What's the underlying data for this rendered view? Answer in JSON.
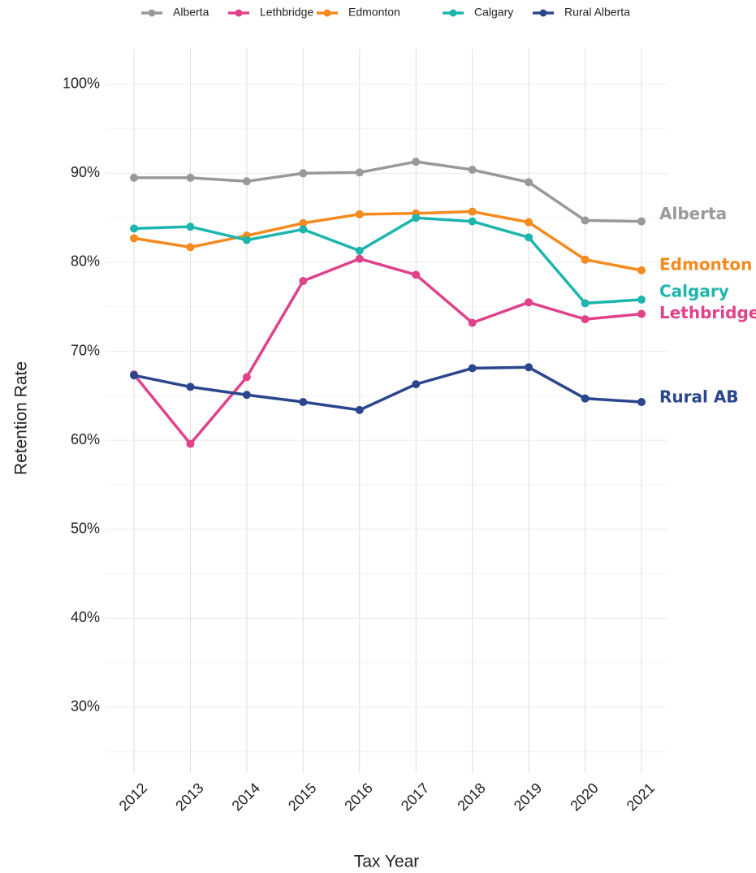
{
  "chart_data": {
    "type": "line",
    "x_label": "Tax Year",
    "y_label": "Retention Rate",
    "categories": [
      "2012",
      "2013",
      "2014",
      "2015",
      "2016",
      "2017",
      "2018",
      "2019",
      "2020",
      "2021"
    ],
    "ylim": [
      22.6,
      104
    ],
    "yticks": [
      {
        "value": 30,
        "label": "30%"
      },
      {
        "value": 40,
        "label": "40%"
      },
      {
        "value": 50,
        "label": "50%"
      },
      {
        "value": 60,
        "label": "60%"
      },
      {
        "value": 70,
        "label": "70%"
      },
      {
        "value": 80,
        "label": "80%"
      },
      {
        "value": 90,
        "label": "90%"
      },
      {
        "value": 100,
        "label": "100%"
      }
    ],
    "yticks_minor": [
      25,
      35,
      45,
      55,
      65,
      75,
      85,
      95
    ],
    "grid": true,
    "legend": "top",
    "series": [
      {
        "name": "Alberta",
        "end_label": "Alberta",
        "color": "#999999",
        "values": [
          89.5,
          89.5,
          89.1,
          90.0,
          90.1,
          91.3,
          90.4,
          89.0,
          84.7,
          84.6
        ]
      },
      {
        "name": "Lethbridge",
        "end_label": "Lethbridge",
        "color": "#e0428a",
        "values": [
          67.4,
          59.6,
          67.1,
          77.9,
          80.4,
          78.6,
          73.2,
          75.5,
          73.6,
          74.2
        ]
      },
      {
        "name": "Edmonton",
        "end_label": "Edmonton",
        "color": "#f58a1f",
        "values": [
          82.7,
          81.7,
          83.0,
          84.4,
          85.4,
          85.5,
          85.7,
          84.5,
          80.3,
          79.1
        ]
      },
      {
        "name": "Calgary",
        "end_label": "Calgary",
        "color": "#1db5ae",
        "values": [
          83.8,
          84.0,
          82.5,
          83.7,
          81.3,
          85.0,
          84.6,
          82.8,
          75.4,
          75.8
        ]
      },
      {
        "name": "Rural Alberta",
        "end_label": "Rural AB",
        "color": "#2a468d",
        "values": [
          67.3,
          66.0,
          65.1,
          64.3,
          63.4,
          66.3,
          68.1,
          68.2,
          64.7,
          64.3
        ]
      }
    ]
  }
}
